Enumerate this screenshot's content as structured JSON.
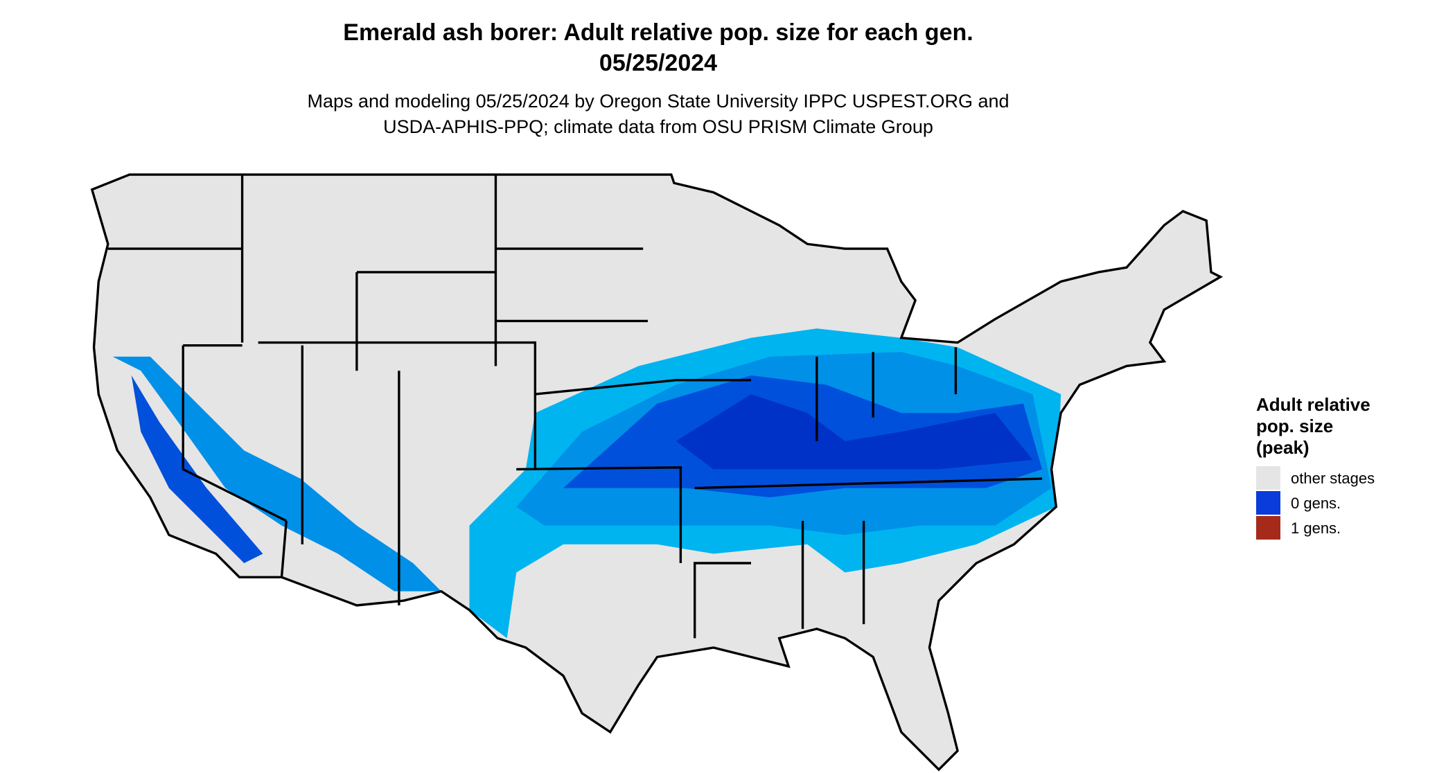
{
  "header": {
    "title": "Emerald ash borer: Adult relative pop. size for each gen.",
    "date": "05/25/2024",
    "subtitle": [
      "Maps and modeling 05/25/2024 by Oregon State University IPPC USPEST.ORG and",
      "USDA-APHIS-PPQ; climate data from OSU PRISM Climate Group"
    ]
  },
  "legend": {
    "title": [
      "Adult relative",
      "pop. size",
      "(peak)"
    ],
    "items": [
      {
        "label": "other stages",
        "color": "#e5e5e5"
      },
      {
        "label": "0 gens.",
        "color": "#0a3cdc"
      },
      {
        "label": "1 gens.",
        "color": "#a52a1a"
      }
    ]
  }
}
